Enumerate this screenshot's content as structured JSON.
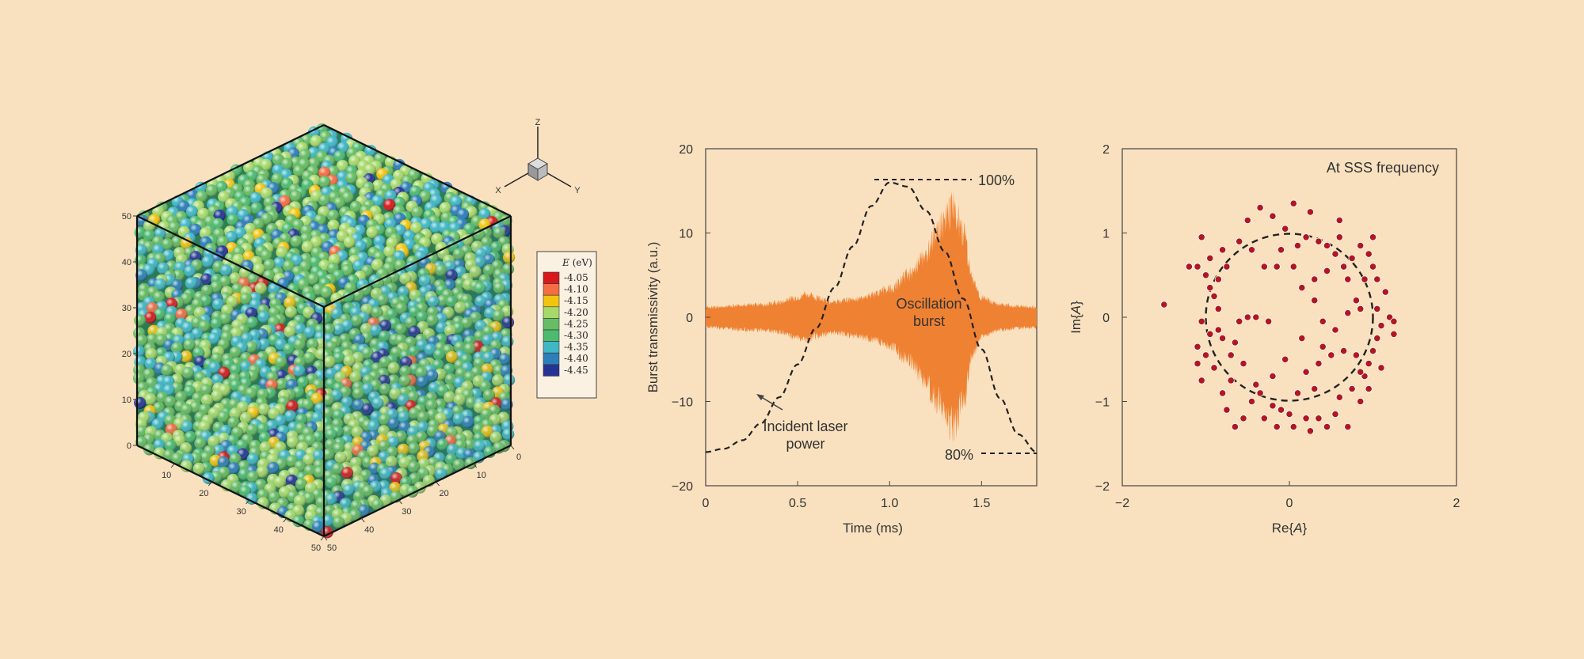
{
  "background": "#f9e1bf",
  "chart_data": [
    {
      "type": "scatter3d",
      "title": "",
      "colorbar": {
        "label_var": "E",
        "label_unit": " (eV)",
        "levels": [
          "-4.05",
          "-4.10",
          "-4.15",
          "-4.20",
          "-4.25",
          "-4.30",
          "-4.35",
          "-4.40",
          "-4.45"
        ],
        "colors": [
          "#d7191c",
          "#f46d43",
          "#f1c40f",
          "#a6d96a",
          "#66bd63",
          "#4cbb6f",
          "#3fb7c6",
          "#2c7fb8",
          "#253494"
        ]
      },
      "axes": {
        "x": "X",
        "y": "Y",
        "z": "Z"
      },
      "ticks": {
        "vertical": [
          "0",
          "10",
          "20",
          "30",
          "40",
          "50"
        ],
        "left_depth": [
          "10",
          "20",
          "30",
          "40",
          "50"
        ],
        "right_depth": [
          "0",
          "10",
          "20",
          "30",
          "40",
          "50"
        ]
      },
      "range": [
        0,
        50
      ]
    },
    {
      "type": "line",
      "title": "",
      "xlabel": "Time (ms)",
      "ylabel": "Burst transmissivity (a.u.)",
      "xlim": [
        0,
        1.8
      ],
      "ylim": [
        -20,
        20
      ],
      "xticks": [
        "0",
        "0.5",
        "1.0",
        "1.5"
      ],
      "yticks": [
        "20",
        "10",
        "0",
        "-10",
        "-20"
      ],
      "series": [
        {
          "name": "Incident laser power",
          "style": "dashed",
          "color": "#222222",
          "x": [
            0,
            0.1,
            0.2,
            0.3,
            0.4,
            0.5,
            0.6,
            0.7,
            0.8,
            0.9,
            1.0,
            1.1,
            1.2,
            1.3,
            1.4,
            1.5,
            1.6,
            1.7,
            1.8
          ],
          "y": [
            -16,
            -15.6,
            -14.6,
            -12.6,
            -9.5,
            -5.6,
            -1.3,
            3.5,
            8.4,
            13.2,
            16,
            15.5,
            12.6,
            7.8,
            2.2,
            -3.8,
            -9.6,
            -13.9,
            -16
          ]
        },
        {
          "name": "Oscillation burst",
          "style": "filled-envelope",
          "color": "#ef8132",
          "x": [
            0,
            0.1,
            0.2,
            0.3,
            0.4,
            0.5,
            0.55,
            0.6,
            0.7,
            0.8,
            0.9,
            1.0,
            1.1,
            1.2,
            1.25,
            1.3,
            1.35,
            1.4,
            1.45,
            1.5,
            1.6,
            1.7,
            1.8
          ],
          "amp": [
            1.2,
            1.4,
            1.6,
            1.6,
            1.9,
            2.6,
            3.0,
            2.4,
            2.0,
            2.3,
            2.8,
            3.6,
            5.4,
            8.2,
            10.5,
            12.4,
            14.0,
            10.5,
            5.0,
            2.4,
            1.6,
            1.4,
            1.3
          ]
        }
      ],
      "annotations": {
        "top": "100%",
        "bottom": "80%",
        "laser": [
          "Incident laser",
          "power"
        ],
        "burst": [
          "Oscillation",
          "burst"
        ]
      }
    },
    {
      "type": "scatter",
      "title": "At SSS frequency",
      "xlabel_pre": "Re{",
      "xlabel_var": "A",
      "xlabel_post": "}",
      "ylabel_pre": "Im{",
      "ylabel_var": "A",
      "ylabel_post": "}",
      "xlim": [
        -2,
        2
      ],
      "ylim": [
        -2,
        2
      ],
      "xticks": [
        "−2",
        "0",
        "2"
      ],
      "yticks": [
        "2",
        "1",
        "0",
        "−1",
        "−2"
      ],
      "circle": {
        "cx": 0,
        "cy": 0,
        "r": 1,
        "style": "dashed"
      },
      "color": "#b01722",
      "points": [
        [
          -1.5,
          0.15
        ],
        [
          -1.1,
          0.6
        ],
        [
          -1.05,
          0.95
        ],
        [
          -0.95,
          0.7
        ],
        [
          -0.85,
          0.45
        ],
        [
          -0.8,
          0.8
        ],
        [
          -0.75,
          0.6
        ],
        [
          -1.0,
          0.5
        ],
        [
          -0.9,
          0.25
        ],
        [
          -0.85,
          0.1
        ],
        [
          -1.05,
          -0.05
        ],
        [
          -0.95,
          -0.2
        ],
        [
          -1.1,
          -0.35
        ],
        [
          -1.0,
          -0.45
        ],
        [
          -0.9,
          -0.6
        ],
        [
          -1.05,
          -0.75
        ],
        [
          -0.8,
          -0.9
        ],
        [
          -0.7,
          -0.75
        ],
        [
          -0.75,
          -1.1
        ],
        [
          -0.65,
          -1.3
        ],
        [
          -0.55,
          -1.2
        ],
        [
          -0.35,
          -0.9
        ],
        [
          -0.3,
          -1.2
        ],
        [
          -0.2,
          -1.05
        ],
        [
          -0.1,
          -1.1
        ],
        [
          0.0,
          -1.15
        ],
        [
          0.1,
          -0.9
        ],
        [
          0.2,
          -1.2
        ],
        [
          0.25,
          -1.35
        ],
        [
          0.35,
          -1.2
        ],
        [
          0.45,
          -1.3
        ],
        [
          0.55,
          -1.15
        ],
        [
          0.7,
          -1.3
        ],
        [
          0.6,
          -0.95
        ],
        [
          0.75,
          -0.85
        ],
        [
          0.85,
          -1.0
        ],
        [
          0.9,
          -0.7
        ],
        [
          0.95,
          -0.55
        ],
        [
          1.0,
          -0.4
        ],
        [
          1.05,
          -0.25
        ],
        [
          1.1,
          -0.1
        ],
        [
          1.2,
          0.0
        ],
        [
          1.25,
          -0.2
        ],
        [
          1.15,
          0.3
        ],
        [
          1.05,
          0.45
        ],
        [
          1.0,
          0.6
        ],
        [
          0.95,
          0.75
        ],
        [
          1.0,
          0.95
        ],
        [
          0.85,
          0.85
        ],
        [
          0.75,
          0.7
        ],
        [
          0.65,
          0.6
        ],
        [
          0.55,
          0.75
        ],
        [
          0.45,
          0.85
        ],
        [
          0.35,
          0.9
        ],
        [
          0.2,
          0.95
        ],
        [
          0.1,
          0.85
        ],
        [
          -0.05,
          1.05
        ],
        [
          -0.2,
          1.2
        ],
        [
          -0.35,
          1.3
        ],
        [
          -0.5,
          1.15
        ],
        [
          -0.6,
          0.9
        ],
        [
          -0.45,
          0.8
        ],
        [
          -0.3,
          0.6
        ],
        [
          -0.1,
          0.8
        ],
        [
          0.05,
          1.35
        ],
        [
          0.25,
          1.25
        ],
        [
          0.6,
          1.15
        ],
        [
          0.3,
          0.45
        ],
        [
          0.15,
          0.35
        ],
        [
          0.3,
          0.2
        ],
        [
          -0.4,
          0.0
        ],
        [
          -0.25,
          -0.05
        ],
        [
          -0.5,
          0.0
        ],
        [
          -0.6,
          -0.05
        ],
        [
          0.4,
          -0.05
        ],
        [
          0.55,
          -0.15
        ],
        [
          0.7,
          0.05
        ],
        [
          0.8,
          0.2
        ],
        [
          0.65,
          -0.4
        ],
        [
          0.8,
          -0.45
        ],
        [
          0.5,
          -0.45
        ],
        [
          0.35,
          -0.55
        ],
        [
          0.2,
          -0.65
        ],
        [
          -0.05,
          -0.5
        ],
        [
          -0.2,
          -0.7
        ],
        [
          -0.4,
          -0.8
        ],
        [
          -0.55,
          -0.55
        ],
        [
          -0.7,
          -0.45
        ],
        [
          -0.65,
          -0.3
        ],
        [
          -0.85,
          -0.15
        ],
        [
          0.9,
          0.45
        ],
        [
          0.85,
          0.1
        ],
        [
          1.05,
          0.1
        ],
        [
          0.7,
          0.45
        ],
        [
          0.45,
          0.55
        ],
        [
          0.05,
          0.6
        ],
        [
          -0.15,
          0.6
        ],
        [
          0.95,
          -0.85
        ],
        [
          -0.8,
          -0.25
        ],
        [
          0.3,
          -0.85
        ],
        [
          -0.45,
          -1.0
        ],
        [
          -1.1,
          -0.55
        ],
        [
          0.4,
          -0.35
        ],
        [
          0.15,
          -0.25
        ],
        [
          0.6,
          0.95
        ],
        [
          -0.95,
          0.35
        ],
        [
          1.1,
          -0.6
        ],
        [
          1.25,
          -0.05
        ],
        [
          -1.2,
          0.6
        ],
        [
          0.05,
          -1.3
        ],
        [
          -0.15,
          -1.3
        ],
        [
          0.85,
          -0.65
        ]
      ]
    }
  ]
}
